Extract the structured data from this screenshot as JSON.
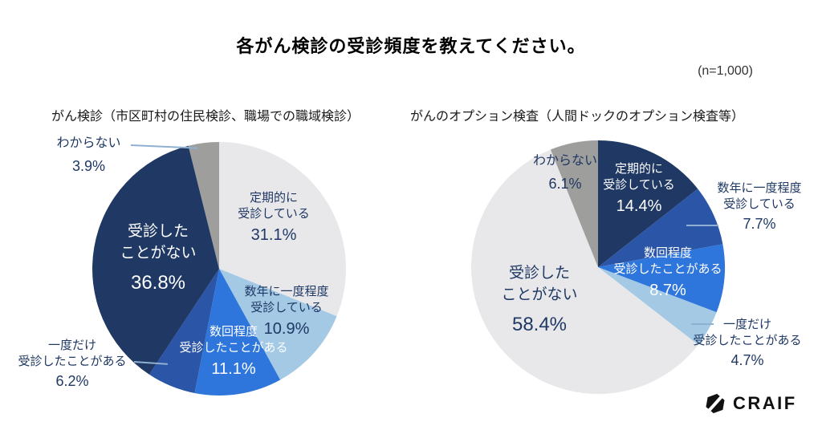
{
  "title": "各がん検診の受診頻度を教えてください。",
  "n_label": "(n=1,000)",
  "logo": {
    "text": "CRAIF"
  },
  "colors": {
    "navy": "#1f3864",
    "dark_blue": "#2b55a7",
    "medium_blue": "#2f76dc",
    "pale_blue": "#a3c9e5",
    "light_gray": "#e8e8ea",
    "gray": "#9e9e9c",
    "label_text": "#1f3864",
    "leader_line": "#8fb0d0"
  },
  "chart_data": [
    {
      "type": "pie",
      "title": "がん検診（市区町村の住民検診、職場での職域検診）",
      "start_angle": "12-oclock",
      "direction": "clockwise",
      "slices": [
        {
          "label": "定期的に受診している",
          "value": 31.1,
          "color": "#e8e8ea"
        },
        {
          "label": "数年に一度程度受診している",
          "value": 10.9,
          "color": "#a3c9e5"
        },
        {
          "label": "数回程度受診したことがある",
          "value": 11.1,
          "color": "#2f76dc"
        },
        {
          "label": "一度だけ受診したことがある",
          "value": 6.2,
          "color": "#2b55a7"
        },
        {
          "label": "受診したことがない",
          "value": 36.8,
          "color": "#1f3864"
        },
        {
          "label": "わからない",
          "value": 3.9,
          "color": "#9e9e9c"
        }
      ],
      "labels": [
        {
          "name": "定期的に\n受診している",
          "pct": "31.1%"
        },
        {
          "name": "数年に一度程度\n受診している",
          "pct": "10.9%"
        },
        {
          "name": "数回程度\n受診したことがある",
          "pct": "11.1%"
        },
        {
          "name": "一度だけ\n受診したことがある",
          "pct": "6.2%"
        },
        {
          "name": "受診した\nことがない",
          "pct": "36.8%"
        },
        {
          "name": "わからない",
          "pct": "3.9%"
        }
      ]
    },
    {
      "type": "pie",
      "title": "がんのオプション検査（人間ドックのオプション検査等）",
      "start_angle": "12-oclock",
      "direction": "clockwise",
      "slices": [
        {
          "label": "定期的に受診している",
          "value": 14.4,
          "color": "#1f3864"
        },
        {
          "label": "数年に一度程度受診している",
          "value": 7.7,
          "color": "#2b55a7"
        },
        {
          "label": "数回程度受診したことがある",
          "value": 8.7,
          "color": "#2f76dc"
        },
        {
          "label": "一度だけ受診したことがある",
          "value": 4.7,
          "color": "#a3c9e5"
        },
        {
          "label": "受診したことがない",
          "value": 58.4,
          "color": "#e8e8ea"
        },
        {
          "label": "わからない",
          "value": 6.1,
          "color": "#9e9e9c"
        }
      ],
      "labels": [
        {
          "name": "定期的に\n受診している",
          "pct": "14.4%"
        },
        {
          "name": "数年に一度程度\n受診している",
          "pct": "7.7%"
        },
        {
          "name": "数回程度\n受診したことがある",
          "pct": "8.7%"
        },
        {
          "name": "一度だけ\n受診したことがある",
          "pct": "4.7%"
        },
        {
          "name": "受診した\nことがない",
          "pct": "58.4%"
        },
        {
          "name": "わからない",
          "pct": "6.1%"
        }
      ]
    }
  ]
}
